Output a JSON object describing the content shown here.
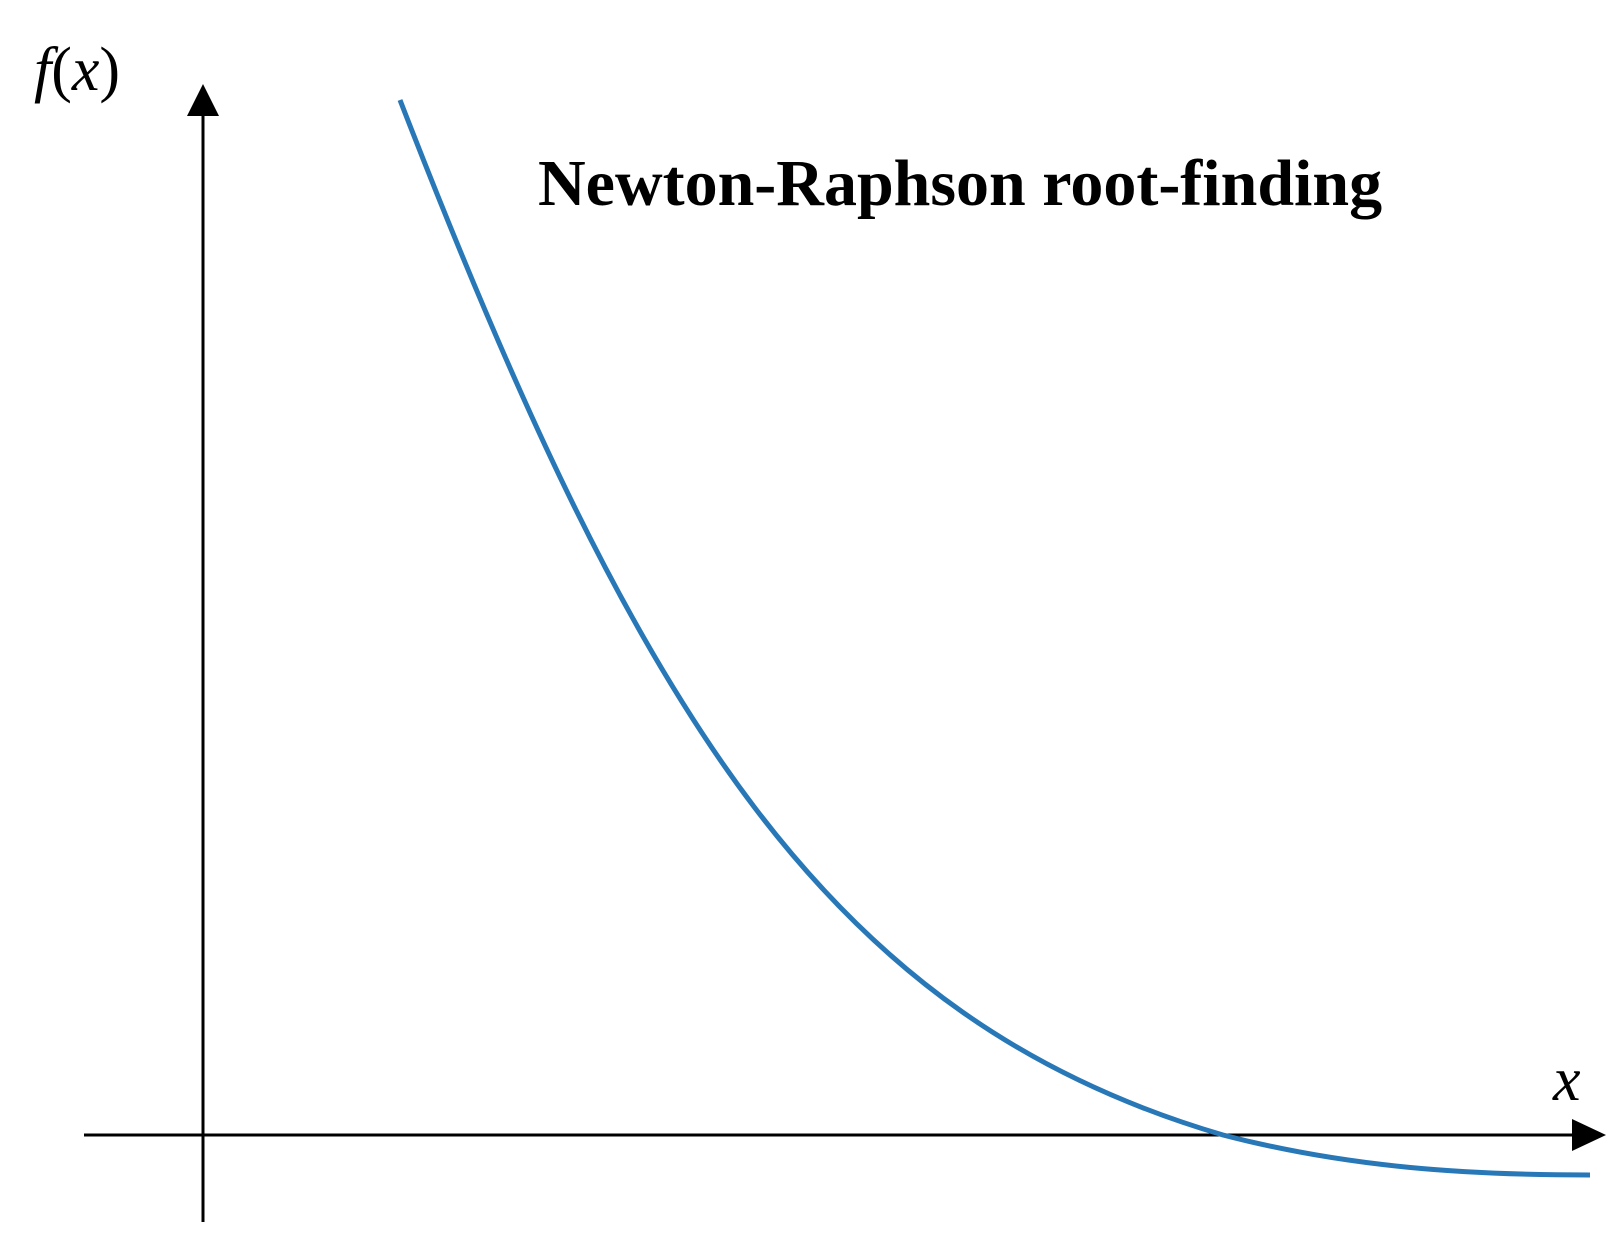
{
  "title": "Newton-Raphson root-finding",
  "axes": {
    "y_label": {
      "func": "f",
      "open_paren": "(",
      "var": "x",
      "close_paren": ")"
    },
    "x_label": "x"
  },
  "colors": {
    "curve": "#2878b8",
    "axis": "#000000",
    "background": "#ffffff"
  }
}
